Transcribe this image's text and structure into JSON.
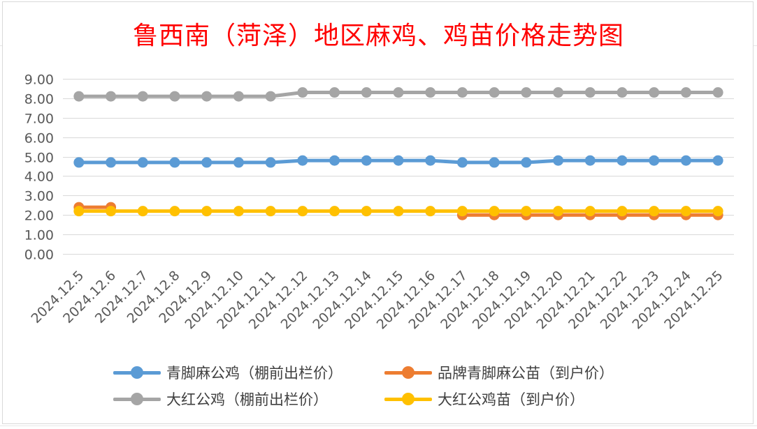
{
  "chart_data": {
    "type": "line",
    "title": "鲁西南（菏泽）地区麻鸡、鸡苗价格走势图",
    "xlabel": "",
    "ylabel": "",
    "ylim": [
      0,
      9
    ],
    "yticks": [
      "0.00",
      "1.00",
      "2.00",
      "3.00",
      "4.00",
      "5.00",
      "6.00",
      "7.00",
      "8.00",
      "9.00"
    ],
    "grid": true,
    "legend_position": "bottom",
    "categories": [
      "2024.12.5",
      "2024.12.6",
      "2024.12.7",
      "2024.12.8",
      "2024.12.9",
      "2024.12.10",
      "2024.12.11",
      "2024.12.12",
      "2024.12.13",
      "2024.12.14",
      "2024.12.15",
      "2024.12.16",
      "2024.12.17",
      "2024.12.18",
      "2024.12.19",
      "2024.12.20",
      "2024.12.21",
      "2024.12.22",
      "2024.12.23",
      "2024.12.24",
      "2024.12.25"
    ],
    "series": [
      {
        "name": "青脚麻公鸡（棚前出栏价）",
        "color": "#5b9bd5",
        "values": [
          4.7,
          4.7,
          4.7,
          4.7,
          4.7,
          4.7,
          4.7,
          4.8,
          4.8,
          4.8,
          4.8,
          4.8,
          4.7,
          4.7,
          4.7,
          4.8,
          4.8,
          4.8,
          4.8,
          4.8,
          4.8
        ]
      },
      {
        "name": "品牌青脚麻公苗（到户价）",
        "color": "#ed7d31",
        "values": [
          2.4,
          2.4,
          null,
          null,
          null,
          null,
          null,
          null,
          null,
          null,
          null,
          null,
          2.0,
          2.0,
          2.0,
          2.0,
          2.0,
          2.0,
          2.0,
          2.0,
          2.0
        ]
      },
      {
        "name": "大红公鸡（棚前出栏价）",
        "color": "#a5a5a5",
        "values": [
          8.1,
          8.1,
          8.1,
          8.1,
          8.1,
          8.1,
          8.1,
          8.3,
          8.3,
          8.3,
          8.3,
          8.3,
          8.3,
          8.3,
          8.3,
          8.3,
          8.3,
          8.3,
          8.3,
          8.3,
          8.3
        ]
      },
      {
        "name": "大红公鸡苗（到户价）",
        "color": "#ffc000",
        "values": [
          2.2,
          2.2,
          2.2,
          2.2,
          2.2,
          2.2,
          2.2,
          2.2,
          2.2,
          2.2,
          2.2,
          2.2,
          2.2,
          2.2,
          2.2,
          2.2,
          2.2,
          2.2,
          2.2,
          2.2,
          2.2
        ]
      }
    ]
  }
}
